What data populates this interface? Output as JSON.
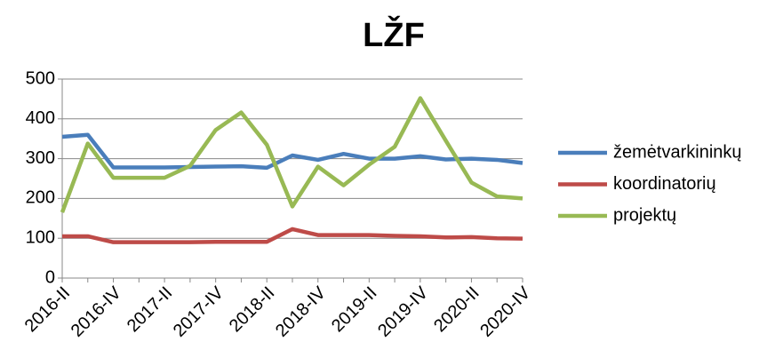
{
  "chart_data": {
    "type": "line",
    "title": "LŽF",
    "categories": [
      "2016-II",
      null,
      "2016-IV",
      null,
      "2017-II",
      null,
      "2017-IV",
      null,
      "2018-II",
      null,
      "2018-IV",
      null,
      "2019-II",
      null,
      "2019-IV",
      null,
      "2020-II",
      null,
      "2020-IV"
    ],
    "series": [
      {
        "name": "žemėtvarkininkų",
        "color": "#4a7ebb",
        "values": [
          355,
          360,
          278,
          278,
          278,
          279,
          280,
          281,
          277,
          308,
          297,
          312,
          300,
          300,
          306,
          298,
          300,
          297,
          289
        ]
      },
      {
        "name": "koordinatorių",
        "color": "#be4b48",
        "values": [
          105,
          105,
          90,
          90,
          90,
          90,
          91,
          91,
          91,
          123,
          108,
          108,
          108,
          106,
          105,
          102,
          103,
          100,
          99
        ]
      },
      {
        "name": "projektų",
        "color": "#98b954",
        "values": [
          165,
          338,
          252,
          252,
          252,
          282,
          372,
          416,
          335,
          180,
          280,
          233,
          285,
          330,
          452,
          345,
          240,
          205,
          200
        ]
      }
    ],
    "ylim": [
      0,
      500
    ],
    "yticks": [
      0,
      100,
      200,
      300,
      400,
      500
    ],
    "grid": true,
    "legend": "right"
  }
}
